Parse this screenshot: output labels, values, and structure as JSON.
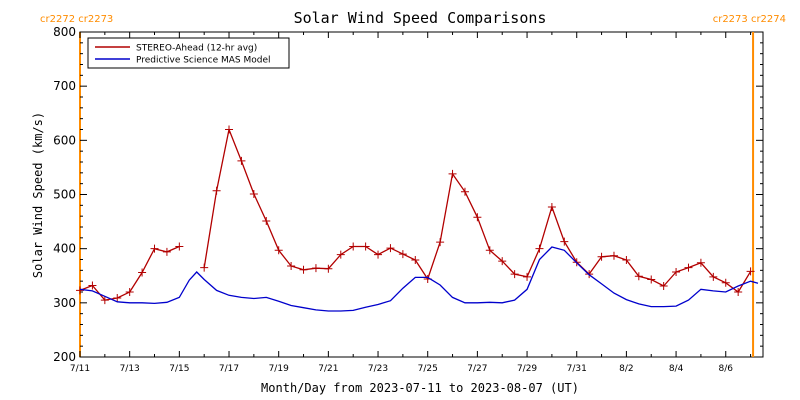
{
  "chart_data": {
    "type": "line",
    "title": "Solar Wind Speed Comparisons",
    "xlabel": "Month/Day from 2023-07-11 to 2023-08-07 (UT)",
    "ylabel": "Solar Wind Speed (km/s)",
    "xlim": [
      0,
      27.5
    ],
    "ylim": [
      200,
      800
    ],
    "y_ticks": [
      200,
      300,
      400,
      500,
      600,
      700,
      800
    ],
    "x_ticks": [
      {
        "day": 0,
        "label": "7/11"
      },
      {
        "day": 2,
        "label": "7/13"
      },
      {
        "day": 4,
        "label": "7/15"
      },
      {
        "day": 6,
        "label": "7/17"
      },
      {
        "day": 8,
        "label": "7/19"
      },
      {
        "day": 10,
        "label": "7/21"
      },
      {
        "day": 12,
        "label": "7/23"
      },
      {
        "day": 14,
        "label": "7/25"
      },
      {
        "day": 16,
        "label": "7/27"
      },
      {
        "day": 18,
        "label": "7/29"
      },
      {
        "day": 20,
        "label": "7/31"
      },
      {
        "day": 22,
        "label": "8/2"
      },
      {
        "day": 24,
        "label": "8/4"
      },
      {
        "day": 26,
        "label": "8/6"
      }
    ],
    "carrington_markers": [
      {
        "day": 0,
        "label": "cr2272 cr2273",
        "color": "#ff8c00",
        "side": "left"
      },
      {
        "day": 27.1,
        "label": "cr2273 cr2274",
        "color": "#ff8c00",
        "side": "right"
      }
    ],
    "legend": {
      "position": "top-left"
    },
    "series": [
      {
        "name": "STEREO-Ahead (12-hr avg)",
        "color": "#b20000",
        "markers": "plus",
        "segments": [
          [
            [
              0,
              323
            ],
            [
              0.5,
              332
            ],
            [
              1,
              305
            ],
            [
              1.5,
              309
            ],
            [
              2,
              320
            ],
            [
              2.5,
              356
            ],
            [
              3,
              400
            ],
            [
              3.5,
              394
            ],
            [
              4,
              404
            ]
          ],
          [
            [
              5,
              365
            ],
            [
              5.5,
              507
            ],
            [
              6,
              620
            ],
            [
              6.5,
              562
            ],
            [
              7,
              501
            ],
            [
              7.5,
              451
            ],
            [
              8,
              397
            ],
            [
              8.5,
              368
            ],
            [
              9,
              361
            ],
            [
              9.5,
              364
            ],
            [
              10,
              363
            ],
            [
              10.5,
              389
            ],
            [
              11,
              404
            ],
            [
              11.5,
              404
            ],
            [
              12,
              389
            ],
            [
              12.5,
              401
            ],
            [
              13,
              390
            ],
            [
              13.5,
              379
            ],
            [
              14,
              344
            ],
            [
              14.5,
              412
            ],
            [
              15,
              538
            ],
            [
              15.5,
              505
            ],
            [
              16,
              458
            ],
            [
              16.5,
              397
            ],
            [
              17,
              377
            ],
            [
              17.5,
              353
            ],
            [
              18,
              348
            ],
            [
              18.5,
              400
            ],
            [
              19,
              477
            ],
            [
              19.5,
              413
            ],
            [
              20,
              375
            ],
            [
              20.5,
              353
            ],
            [
              21,
              385
            ],
            [
              21.5,
              387
            ],
            [
              22,
              379
            ],
            [
              22.5,
              349
            ],
            [
              23,
              343
            ],
            [
              23.5,
              331
            ],
            [
              24,
              357
            ],
            [
              24.5,
              365
            ],
            [
              25,
              374
            ],
            [
              25.5,
              348
            ],
            [
              26,
              337
            ],
            [
              26.5,
              320
            ],
            [
              27,
              358
            ]
          ]
        ]
      },
      {
        "name": "Predictive Science MAS Model",
        "color": "#0000cc",
        "markers": "none",
        "segments": [
          [
            [
              0,
              325
            ],
            [
              0.5,
              322
            ],
            [
              1,
              312
            ],
            [
              1.5,
              302
            ],
            [
              2,
              300
            ],
            [
              2.5,
              300
            ],
            [
              3,
              299
            ],
            [
              3.5,
              301
            ],
            [
              4,
              310
            ],
            [
              4.4,
              342
            ],
            [
              4.7,
              357
            ],
            [
              5,
              343
            ],
            [
              5.5,
              323
            ],
            [
              6,
              314
            ],
            [
              6.5,
              310
            ],
            [
              7,
              308
            ],
            [
              7.5,
              310
            ],
            [
              8,
              303
            ],
            [
              8.5,
              295
            ],
            [
              9,
              291
            ],
            [
              9.5,
              287
            ],
            [
              10,
              285
            ],
            [
              10.5,
              285
            ],
            [
              11,
              286
            ],
            [
              11.5,
              292
            ],
            [
              12,
              297
            ],
            [
              12.5,
              304
            ],
            [
              13,
              327
            ],
            [
              13.5,
              347
            ],
            [
              14,
              347
            ],
            [
              14.5,
              333
            ],
            [
              15,
              310
            ],
            [
              15.5,
              300
            ],
            [
              16,
              300
            ],
            [
              16.5,
              301
            ],
            [
              17,
              300
            ],
            [
              17.5,
              305
            ],
            [
              18,
              325
            ],
            [
              18.5,
              380
            ],
            [
              19,
              403
            ],
            [
              19.5,
              397
            ],
            [
              20,
              374
            ],
            [
              20.5,
              352
            ],
            [
              21,
              335
            ],
            [
              21.5,
              318
            ],
            [
              22,
              306
            ],
            [
              22.5,
              298
            ],
            [
              23,
              293
            ],
            [
              23.5,
              293
            ],
            [
              24,
              294
            ],
            [
              24.5,
              305
            ],
            [
              25,
              325
            ],
            [
              25.5,
              322
            ],
            [
              26,
              320
            ],
            [
              26.5,
              331
            ],
            [
              27,
              340
            ],
            [
              27.3,
              336
            ]
          ]
        ]
      }
    ]
  }
}
